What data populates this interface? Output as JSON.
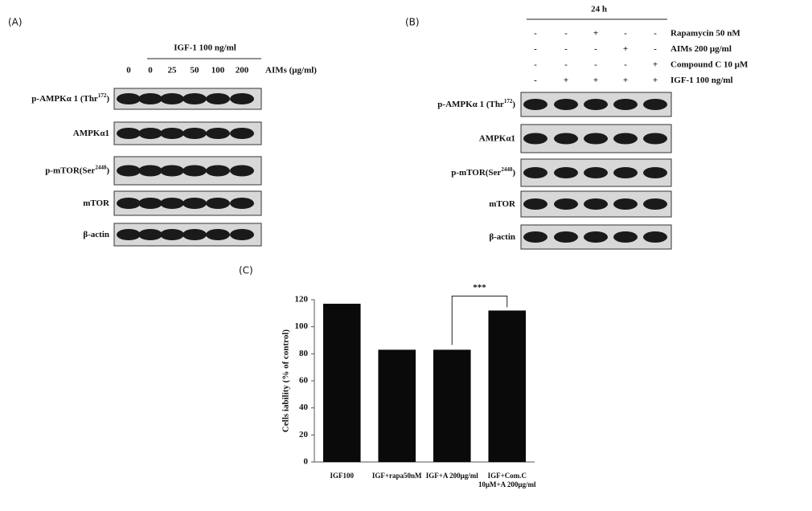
{
  "panel_a": {
    "label": "(A)",
    "treatment": "IGF-1 100 ng/ml",
    "dose_unit": "AIMs  (μg/ml)",
    "doses": [
      "0",
      "0",
      "25",
      "50",
      "100",
      "200"
    ],
    "rows": [
      {
        "text": "p-AMPKα 1 (Thr",
        "sup": "172",
        "tail": ")"
      },
      {
        "text": "AMPKα1"
      },
      {
        "text": "p-mTOR(Ser",
        "sup": "2448",
        "tail": ")"
      },
      {
        "text": "mTOR"
      },
      {
        "text": "β-actin"
      }
    ]
  },
  "panel_b": {
    "label": "(B)",
    "time": "24 h",
    "conditions": [
      {
        "name": "Rapamycin 50 nM",
        "signs": [
          "-",
          "-",
          "+",
          "-",
          "-"
        ]
      },
      {
        "name": "AIMs 200 μg/ml",
        "signs": [
          "-",
          "-",
          "-",
          "+",
          "-"
        ]
      },
      {
        "name": "Compound C 10 μM",
        "signs": [
          "-",
          "-",
          "-",
          "-",
          "+"
        ]
      },
      {
        "name": "IGF-1 100 ng/ml",
        "signs": [
          "-",
          "+",
          "+",
          "+",
          "+"
        ]
      }
    ],
    "rows": [
      {
        "text": "p-AMPKα 1 (Thr",
        "sup": "172",
        "tail": ")"
      },
      {
        "text": "AMPKα1"
      },
      {
        "text": "p-mTOR(Ser",
        "sup": "2448",
        "tail": ")"
      },
      {
        "text": "mTOR"
      },
      {
        "text": "β-actin"
      }
    ]
  },
  "chart_data": {
    "type": "bar",
    "title": "(C)",
    "y_label": "Cells iability (% of control)",
    "categories": [
      "IGF100",
      "IGF+rapa50nM",
      "IGF+A 200μg/ml",
      "IGF+Com.C 10μM+A 200μg/ml"
    ],
    "values": [
      117,
      83,
      83,
      112
    ],
    "color": "#0a0a0a",
    "ylim": [
      0,
      120
    ],
    "yticks": [
      0,
      20,
      40,
      60,
      80,
      100,
      120
    ],
    "annotation": "***"
  }
}
